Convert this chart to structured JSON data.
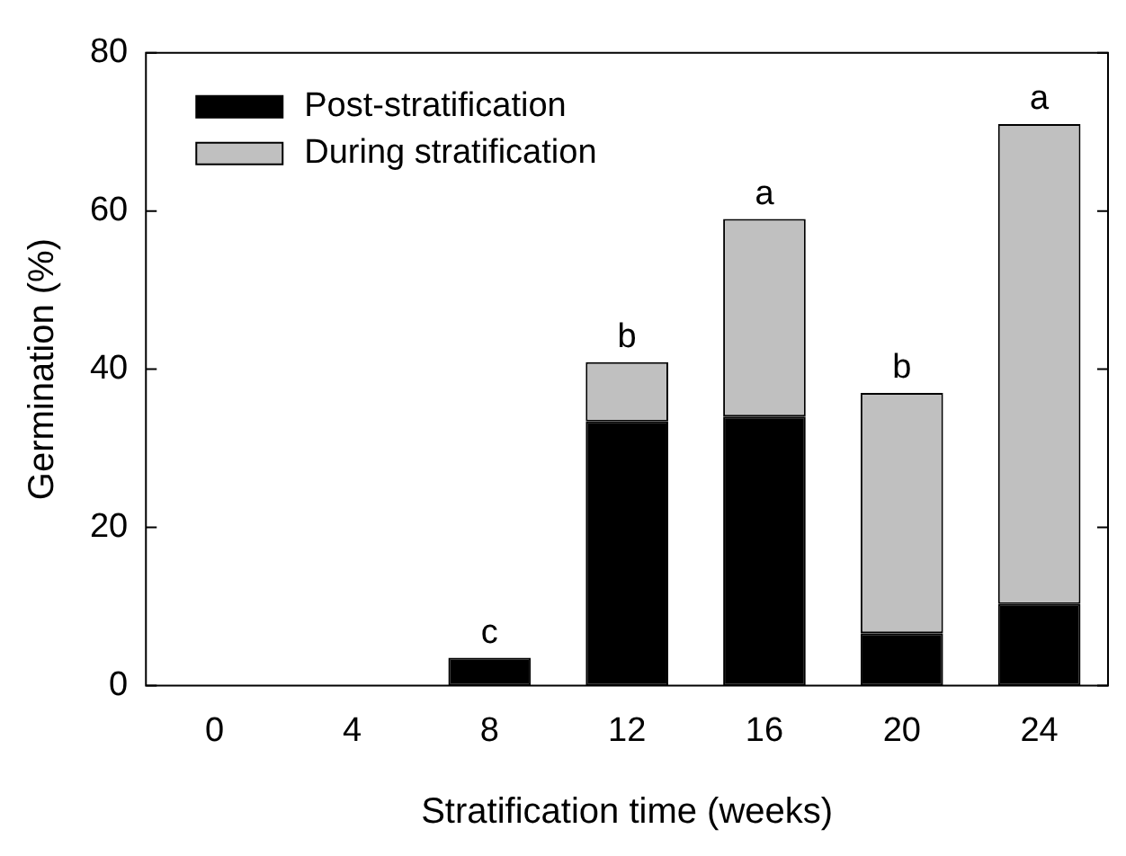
{
  "chart_data": {
    "type": "bar",
    "stacked": true,
    "xlabel": "Stratification time (weeks)",
    "ylabel": "Germination (%)",
    "categories": [
      "0",
      "4",
      "8",
      "12",
      "16",
      "20",
      "24"
    ],
    "series": [
      {
        "name": "Post-stratification",
        "color": "#000000",
        "values": [
          0,
          0,
          3.5,
          33.4,
          34.0,
          6.6,
          10.3
        ]
      },
      {
        "name": "During stratification",
        "color": "#c0c0c0",
        "values": [
          0,
          0,
          0,
          7.5,
          25.0,
          30.4,
          60.7
        ]
      }
    ],
    "ylim": [
      0,
      80
    ],
    "yticks": [
      0,
      20,
      40,
      60,
      80
    ],
    "legend": "top left",
    "annotations": [
      {
        "text": "c",
        "x": "8",
        "y": 3.5
      },
      {
        "text": "b",
        "x": "12",
        "y": 40.9
      },
      {
        "text": "a",
        "x": "16",
        "y": 59.0
      },
      {
        "text": "b",
        "x": "20",
        "y": 37.0
      },
      {
        "text": "a",
        "x": "24",
        "y": 71.0
      }
    ]
  }
}
